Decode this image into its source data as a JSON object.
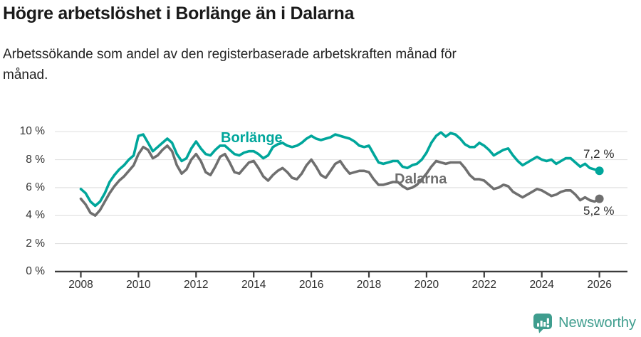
{
  "header": {
    "title": "Högre arbetslöshet i Borlänge än i Dalarna",
    "subtitle": "Arbetssökande som andel av den registerbaserade arbetskraften månad för månad."
  },
  "branding": {
    "name": "Newsworthy",
    "logo_icon": "bar-chart-speech-bubble",
    "color": "#3f9d8e"
  },
  "chart_data": {
    "type": "line",
    "title": "Högre arbetslöshet i Borlänge än i Dalarna",
    "subtitle": "Arbetssökande som andel av den registerbaserade arbetskraften månad för månad.",
    "unit": "%",
    "sampling": "monthly data shown, values sampled every 2 months (Jan, Mar, May, Jul, Sep, Nov)",
    "xlim": [
      2007.9,
      2027
    ],
    "ylim": [
      0,
      10.5
    ],
    "grid": "horizontal",
    "legend_position": "inline-labels",
    "x_axis": {
      "ticks": [
        {
          "value": 2008,
          "label": "2008"
        },
        {
          "value": 2010,
          "label": "2010"
        },
        {
          "value": 2012,
          "label": "2012"
        },
        {
          "value": 2014,
          "label": "2014"
        },
        {
          "value": 2016,
          "label": "2016"
        },
        {
          "value": 2018,
          "label": "2018"
        },
        {
          "value": 2020,
          "label": "2020"
        },
        {
          "value": 2022,
          "label": "2022"
        },
        {
          "value": 2024,
          "label": "2024"
        },
        {
          "value": 2026,
          "label": "2026"
        }
      ]
    },
    "y_axis": {
      "ticks": [
        {
          "value": 10,
          "label": "10 %"
        },
        {
          "value": 8,
          "label": "8 %"
        },
        {
          "value": 6,
          "label": "6 %"
        },
        {
          "value": 4,
          "label": "4 %"
        },
        {
          "value": 2,
          "label": "2 %"
        },
        {
          "value": 0,
          "label": "0 %"
        }
      ]
    },
    "style": {
      "grid_color": "#e2e2e2",
      "axis_color": "#3b3b3b"
    },
    "series": [
      {
        "name": "Borlänge",
        "color": "#00a69b",
        "end_label": "7,2 %",
        "end_value": 7.2,
        "values_by_year": {
          "2008": [
            5.9,
            5.6,
            5.0,
            4.7,
            5.0,
            5.6
          ],
          "2009": [
            6.4,
            6.9,
            7.3,
            7.6,
            8.0,
            8.3
          ],
          "2010": [
            9.7,
            9.8,
            9.2,
            8.6,
            8.9,
            9.2
          ],
          "2011": [
            9.5,
            9.2,
            8.4,
            7.9,
            8.1,
            8.8
          ],
          "2012": [
            9.3,
            8.8,
            8.4,
            8.3,
            8.7,
            9.0
          ],
          "2013": [
            9.0,
            8.7,
            8.4,
            8.3,
            8.5,
            8.6
          ],
          "2014": [
            8.6,
            8.4,
            8.1,
            8.3,
            8.9,
            9.1
          ],
          "2015": [
            9.2,
            9.0,
            8.9,
            9.0,
            9.2,
            9.5
          ],
          "2016": [
            9.7,
            9.5,
            9.4,
            9.5,
            9.6,
            9.8
          ],
          "2017": [
            9.7,
            9.6,
            9.5,
            9.3,
            9.0,
            8.9
          ],
          "2018": [
            9.0,
            8.4,
            7.8,
            7.7,
            7.8,
            7.9
          ],
          "2019": [
            7.9,
            7.5,
            7.4,
            7.6,
            7.7,
            8.0
          ],
          "2020": [
            8.5,
            9.2,
            9.7,
            9.95,
            9.65,
            9.9
          ],
          "2021": [
            9.8,
            9.5,
            9.1,
            8.9,
            8.9,
            9.2
          ],
          "2022": [
            9.0,
            8.7,
            8.3,
            8.5,
            8.7,
            8.8
          ],
          "2023": [
            8.3,
            7.9,
            7.6,
            7.8,
            8.0,
            8.2
          ],
          "2024": [
            8.0,
            7.9,
            8.0,
            7.7,
            7.9,
            8.1
          ],
          "2025": [
            8.1,
            7.8,
            7.5,
            7.7,
            7.4,
            7.3
          ],
          "2026": [
            7.2
          ]
        }
      },
      {
        "name": "Dalarna",
        "color": "#6f6f6f",
        "end_label": "5,2 %",
        "end_value": 5.2,
        "values_by_year": {
          "2008": [
            5.2,
            4.8,
            4.2,
            4.0,
            4.4,
            5.0
          ],
          "2009": [
            5.6,
            6.1,
            6.5,
            6.8,
            7.2,
            7.6
          ],
          "2010": [
            8.4,
            8.9,
            8.7,
            8.1,
            8.3,
            8.7
          ],
          "2011": [
            9.0,
            8.6,
            7.6,
            7.0,
            7.3,
            8.0
          ],
          "2012": [
            8.4,
            7.9,
            7.1,
            6.9,
            7.5,
            8.2
          ],
          "2013": [
            8.4,
            7.8,
            7.1,
            7.0,
            7.4,
            7.8
          ],
          "2014": [
            7.9,
            7.4,
            6.8,
            6.5,
            6.9,
            7.2
          ],
          "2015": [
            7.4,
            7.1,
            6.7,
            6.6,
            7.0,
            7.6
          ],
          "2016": [
            8.0,
            7.5,
            6.9,
            6.7,
            7.2,
            7.7
          ],
          "2017": [
            7.9,
            7.4,
            7.0,
            7.1,
            7.2,
            7.2
          ],
          "2018": [
            7.1,
            6.6,
            6.2,
            6.2,
            6.3,
            6.4
          ],
          "2019": [
            6.4,
            6.1,
            5.9,
            6.0,
            6.2,
            6.6
          ],
          "2020": [
            7.0,
            7.5,
            7.9,
            7.8,
            7.7,
            7.8
          ],
          "2021": [
            7.8,
            7.8,
            7.4,
            6.9,
            6.6,
            6.6
          ],
          "2022": [
            6.5,
            6.2,
            5.9,
            6.0,
            6.2,
            6.1
          ],
          "2023": [
            5.7,
            5.5,
            5.3,
            5.5,
            5.7,
            5.9
          ],
          "2024": [
            5.8,
            5.6,
            5.4,
            5.5,
            5.7,
            5.8
          ],
          "2025": [
            5.8,
            5.5,
            5.1,
            5.3,
            5.1,
            5.0
          ],
          "2026": [
            5.2
          ]
        }
      }
    ]
  }
}
